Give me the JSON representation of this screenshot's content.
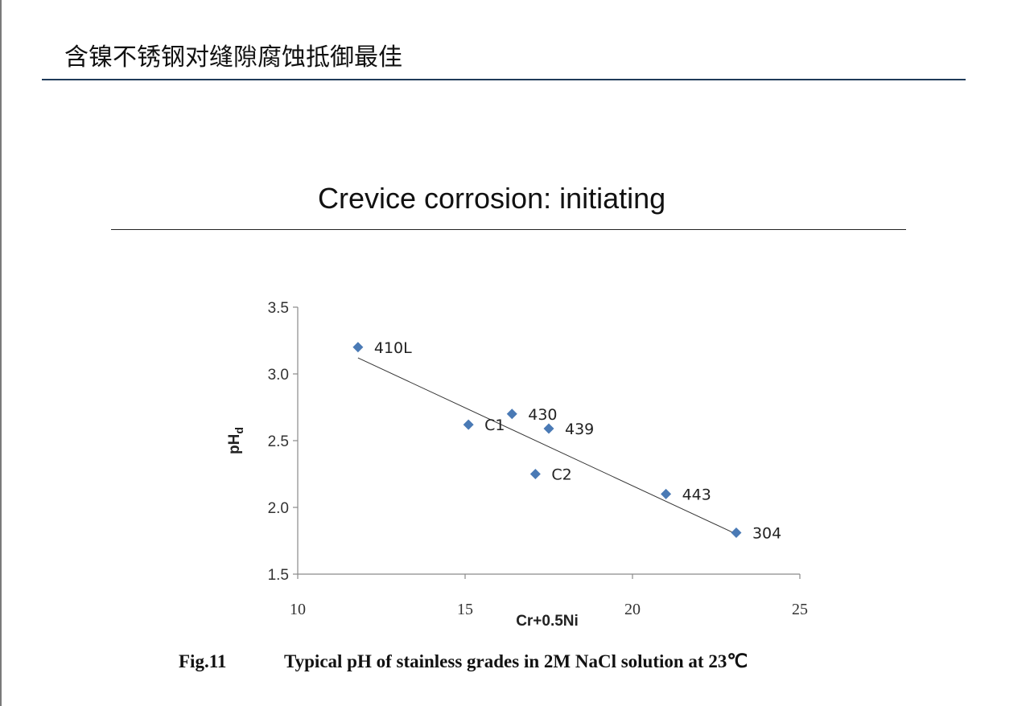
{
  "slide": {
    "title": "含镍不锈钢对缝隙腐蚀抵御最佳",
    "caption_fig": "Fig.11",
    "caption_text": "Typical pH of stainless grades in 2M NaCl solution at 23℃"
  },
  "chart_data": {
    "type": "scatter",
    "title": "Crevice corrosion: initiating",
    "xlabel": "Cr+0.5Ni",
    "ylabel_main": "pH",
    "ylabel_sub": "d",
    "xlim": [
      10,
      25
    ],
    "ylim": [
      1.5,
      3.5
    ],
    "x_ticks": [
      "10",
      "15",
      "20",
      "25"
    ],
    "y_ticks": [
      "1.5",
      "2.0",
      "2.5",
      "3.0",
      "3.5"
    ],
    "marker_color": "#4a7ab5",
    "grid": false,
    "points": [
      {
        "label": "410L",
        "x": 11.8,
        "y": 3.2
      },
      {
        "label": "C1",
        "x": 15.1,
        "y": 2.62
      },
      {
        "label": "430",
        "x": 16.4,
        "y": 2.7
      },
      {
        "label": "439",
        "x": 17.5,
        "y": 2.59
      },
      {
        "label": "C2",
        "x": 17.1,
        "y": 2.25
      },
      {
        "label": "443",
        "x": 21.0,
        "y": 2.1
      },
      {
        "label": "304",
        "x": 23.1,
        "y": 1.81
      }
    ],
    "trendline": {
      "x": [
        11.8,
        23.1
      ],
      "y": [
        3.12,
        1.8
      ]
    }
  }
}
